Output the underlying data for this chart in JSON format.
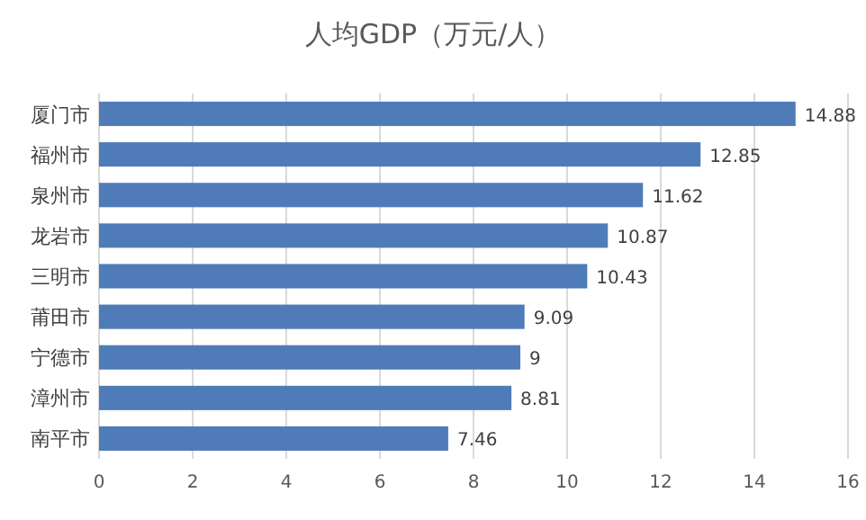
{
  "chart_data": {
    "type": "bar",
    "orientation": "horizontal",
    "title": "人均GDP（万元/人）",
    "categories": [
      "厦门市",
      "福州市",
      "泉州市",
      "龙岩市",
      "三明市",
      "莆田市",
      "宁德市",
      "漳州市",
      "南平市"
    ],
    "values": [
      14.88,
      12.85,
      11.62,
      10.87,
      10.43,
      9.09,
      9,
      8.81,
      7.46
    ],
    "color": "#4f7cb8",
    "xlim": [
      0,
      16
    ],
    "xticks": [
      0,
      2,
      4,
      6,
      8,
      10,
      12,
      14,
      16
    ],
    "grid": "x",
    "data_labels": true
  }
}
